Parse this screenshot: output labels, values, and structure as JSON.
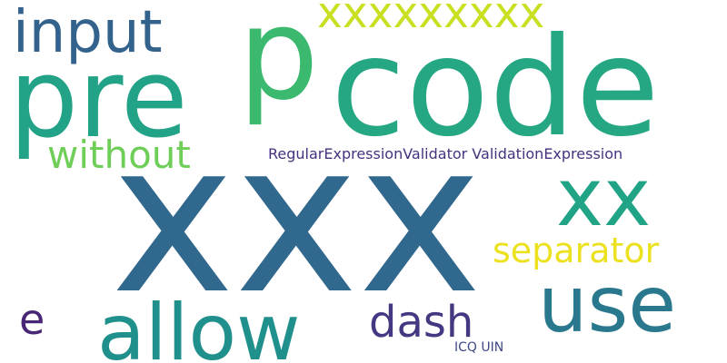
{
  "word_cloud": {
    "words": [
      {
        "text": "xxx",
        "color": "#31688e",
        "weight": 1.0
      },
      {
        "text": "code",
        "color": "#26a784",
        "weight": 0.8
      },
      {
        "text": "p",
        "color": "#3ab96f",
        "weight": 0.8
      },
      {
        "text": "pre",
        "color": "#22a286",
        "weight": 0.7
      },
      {
        "text": "use",
        "color": "#2a788e",
        "weight": 0.55
      },
      {
        "text": "allow",
        "color": "#20908d",
        "weight": 0.55
      },
      {
        "text": "xx",
        "color": "#20a485",
        "weight": 0.55
      },
      {
        "text": "input",
        "color": "#33638d",
        "weight": 0.45
      },
      {
        "text": "xxxxxxxxx",
        "color": "#c8df22",
        "weight": 0.35
      },
      {
        "text": "dash",
        "color": "#453882",
        "weight": 0.35
      },
      {
        "text": "without",
        "color": "#6ece58",
        "weight": 0.3
      },
      {
        "text": "separator",
        "color": "#ece11f",
        "weight": 0.3
      },
      {
        "text": "e",
        "color": "#482575",
        "weight": 0.3
      },
      {
        "text": "RegularExpressionValidator ValidationExpression",
        "color": "#46327e",
        "weight": 0.12
      },
      {
        "text": "ICQ UIN",
        "color": "#3e4a89",
        "weight": 0.1
      }
    ]
  }
}
